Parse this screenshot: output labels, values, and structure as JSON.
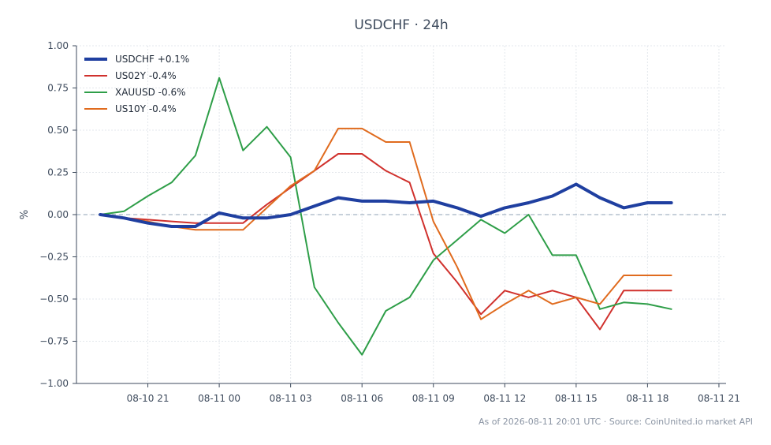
{
  "chart_data": {
    "type": "line",
    "title": "USDCHF · 24h",
    "ylabel": "%",
    "xlabel": "",
    "ylim": [
      -1.0,
      1.0
    ],
    "yticks": [
      "1.00",
      "0.75",
      "0.50",
      "0.25",
      "0.00",
      "−0.25",
      "−0.50",
      "−0.75",
      "−1.00"
    ],
    "ytick_values": [
      1.0,
      0.75,
      0.5,
      0.25,
      0.0,
      -0.25,
      -0.5,
      -0.75,
      -1.0
    ],
    "xticks": [
      "08-10 21",
      "08-11 00",
      "08-11 03",
      "08-11 06",
      "08-11 09",
      "08-11 12",
      "08-11 15",
      "08-11 18",
      "08-11 21"
    ],
    "xtick_hours": [
      0,
      3,
      6,
      9,
      12,
      15,
      18,
      21,
      24
    ],
    "xlim_hours": [
      -3,
      24.3
    ],
    "grid": true,
    "zero_line": true,
    "legend_position": "top-left",
    "x_hours": [
      -2,
      -1,
      0,
      1,
      2,
      3,
      4,
      5,
      6,
      7,
      8,
      9,
      10,
      11,
      12,
      13,
      14,
      15,
      16,
      17,
      18,
      19,
      20,
      21,
      22
    ],
    "series": [
      {
        "name": "USDCHF +0.1%",
        "color": "#1f3fa0",
        "width": 4,
        "values": [
          0.0,
          -0.02,
          -0.05,
          -0.07,
          -0.07,
          0.01,
          -0.02,
          -0.02,
          0.0,
          0.05,
          0.1,
          0.08,
          0.08,
          0.07,
          0.08,
          0.04,
          -0.01,
          0.04,
          0.07,
          0.11,
          0.18,
          0.1,
          0.04,
          0.07,
          0.07
        ]
      },
      {
        "name": "US02Y -0.4%",
        "color": "#d0312d",
        "width": 2,
        "values": [
          0.0,
          -0.02,
          -0.03,
          -0.04,
          -0.05,
          -0.05,
          -0.05,
          0.06,
          0.16,
          0.26,
          0.36,
          0.36,
          0.26,
          0.19,
          -0.23,
          -0.4,
          -0.59,
          -0.45,
          -0.49,
          -0.45,
          -0.49,
          -0.68,
          -0.45,
          -0.45,
          -0.45
        ]
      },
      {
        "name": "XAUUSD -0.6%",
        "color": "#2e9e48",
        "width": 2,
        "values": [
          0.0,
          0.02,
          0.11,
          0.19,
          0.35,
          0.81,
          0.38,
          0.52,
          0.34,
          -0.43,
          -0.64,
          -0.83,
          -0.57,
          -0.49,
          -0.27,
          -0.15,
          -0.03,
          -0.11,
          0.0,
          -0.24,
          -0.24,
          -0.56,
          -0.52,
          -0.53,
          -0.56
        ]
      },
      {
        "name": "US10Y -0.4%",
        "color": "#e06b1e",
        "width": 2,
        "values": [
          0.0,
          -0.02,
          -0.04,
          -0.07,
          -0.09,
          -0.09,
          -0.09,
          0.04,
          0.17,
          0.26,
          0.51,
          0.51,
          0.43,
          0.43,
          -0.04,
          -0.31,
          -0.62,
          -0.53,
          -0.45,
          -0.53,
          -0.49,
          -0.53,
          -0.36,
          -0.36,
          -0.36
        ]
      }
    ],
    "footer": "As of 2026-08-11 20:01 UTC · Source: CoinUnited.io market API"
  }
}
